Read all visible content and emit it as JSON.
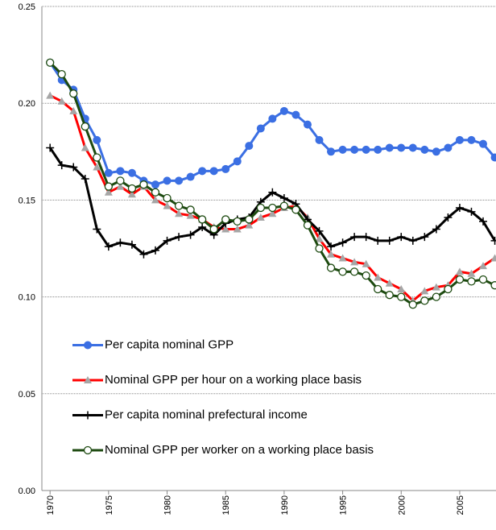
{
  "chart_data": {
    "type": "line",
    "x": [
      1970,
      1971,
      1972,
      1973,
      1974,
      1975,
      1976,
      1977,
      1978,
      1979,
      1980,
      1981,
      1982,
      1983,
      1984,
      1985,
      1986,
      1987,
      1988,
      1989,
      1990,
      1991,
      1992,
      1993,
      1994,
      1995,
      1996,
      1997,
      1998,
      1999,
      2000,
      2001,
      2002,
      2003,
      2004,
      2005,
      2006,
      2007,
      2008
    ],
    "series": [
      {
        "name": "Per capita nominal GPP",
        "color": "#3b6fe3",
        "marker": "circle",
        "values": [
          0.221,
          0.212,
          0.207,
          0.192,
          0.181,
          0.164,
          0.165,
          0.164,
          0.16,
          0.158,
          0.16,
          0.16,
          0.162,
          0.165,
          0.165,
          0.166,
          0.17,
          0.178,
          0.187,
          0.192,
          0.196,
          0.194,
          0.189,
          0.181,
          0.175,
          0.176,
          0.176,
          0.176,
          0.176,
          0.177,
          0.177,
          0.177,
          0.176,
          0.175,
          0.177,
          0.181,
          0.181,
          0.179,
          0.172
        ]
      },
      {
        "name": "Nominal GPP per hour on a working place basis",
        "color": "#ff0000",
        "marker_color": "#a6a6a6",
        "marker": "triangle",
        "values": [
          0.204,
          0.201,
          0.196,
          0.177,
          0.167,
          0.154,
          0.157,
          0.153,
          0.157,
          0.15,
          0.147,
          0.143,
          0.142,
          0.14,
          0.136,
          0.135,
          0.135,
          0.137,
          0.141,
          0.143,
          0.146,
          0.147,
          0.141,
          0.13,
          0.122,
          0.12,
          0.118,
          0.117,
          0.11,
          0.107,
          0.104,
          0.098,
          0.103,
          0.105,
          0.106,
          0.113,
          0.112,
          0.116,
          0.12
        ]
      },
      {
        "name": "Per capita nominal prefectural income",
        "color": "#000000",
        "marker": "plus",
        "values": [
          0.177,
          0.168,
          0.167,
          0.161,
          0.135,
          0.126,
          0.128,
          0.127,
          0.122,
          0.124,
          0.129,
          0.131,
          0.132,
          0.136,
          0.132,
          0.138,
          0.14,
          0.141,
          0.149,
          0.154,
          0.151,
          0.148,
          0.14,
          0.134,
          0.126,
          0.128,
          0.131,
          0.131,
          0.129,
          0.129,
          0.131,
          0.129,
          0.131,
          0.135,
          0.141,
          0.146,
          0.144,
          0.139,
          0.129
        ]
      },
      {
        "name": "Nominal GPP per worker on a working place basis",
        "color": "#1d4a10",
        "marker": "open-circle",
        "values": [
          0.221,
          0.215,
          0.205,
          0.188,
          0.172,
          0.157,
          0.16,
          0.156,
          0.158,
          0.154,
          0.151,
          0.147,
          0.145,
          0.14,
          0.135,
          0.14,
          0.139,
          0.14,
          0.146,
          0.146,
          0.147,
          0.145,
          0.137,
          0.125,
          0.115,
          0.113,
          0.113,
          0.111,
          0.104,
          0.101,
          0.1,
          0.096,
          0.098,
          0.1,
          0.104,
          0.109,
          0.108,
          0.109,
          0.106
        ]
      }
    ],
    "xlim": [
      1969.3,
      2008.1
    ],
    "xticks": [
      1970,
      1975,
      1980,
      1985,
      1990,
      1995,
      2000,
      2005
    ],
    "ylim": [
      0,
      0.25
    ],
    "yticks": [
      {
        "value": 0,
        "label": "0.00"
      },
      {
        "value": 0.05,
        "label": "0.05"
      },
      {
        "value": 0.1,
        "label": "0.10"
      },
      {
        "value": 0.15,
        "label": "0.15"
      },
      {
        "value": 0.2,
        "label": "0.20"
      },
      {
        "value": 0.25,
        "label": "0.25"
      }
    ],
    "grid": true,
    "legend": "lower left"
  }
}
